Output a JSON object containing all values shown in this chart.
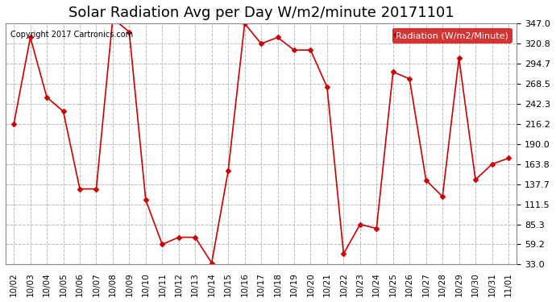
{
  "title": "Solar Radiation Avg per Day W/m2/minute 20171101",
  "copyright": "Copyright 2017 Cartronics.com",
  "legend_label": "Radiation (W/m2/Minute)",
  "xlabel": "",
  "ylabel": "",
  "x_labels": [
    "10/02",
    "10/03",
    "10/04",
    "10/05",
    "10/06",
    "10/07",
    "10/08",
    "10/09",
    "10/10",
    "10/11",
    "10/12",
    "10/13",
    "10/14",
    "10/15",
    "10/16",
    "10/17",
    "10/18",
    "10/19",
    "10/20",
    "10/21",
    "10/22",
    "10/23",
    "10/24",
    "10/25",
    "10/26",
    "10/27",
    "10/28",
    "10/29",
    "10/30",
    "10/31",
    "11/01"
  ],
  "y_values": [
    216.2,
    329.0,
    251.0,
    232.5,
    131.5,
    131.5,
    354.0,
    336.0,
    117.0,
    59.2,
    68.5,
    68.5,
    35.0,
    155.0,
    347.0,
    320.8,
    329.0,
    312.5,
    312.5,
    264.0,
    47.0,
    85.3,
    80.0,
    284.0,
    275.0,
    143.0,
    121.5,
    302.0,
    143.5,
    163.8,
    171.5
  ],
  "line_color": "#cc0000",
  "marker": "D",
  "marker_size": 3,
  "bg_color": "#ffffff",
  "grid_color": "#bbbbbb",
  "ylim": [
    33.0,
    347.0
  ],
  "yticks": [
    33.0,
    59.2,
    85.3,
    111.5,
    137.7,
    163.8,
    190.0,
    216.2,
    242.3,
    268.5,
    294.7,
    320.8,
    347.0
  ],
  "title_fontsize": 13,
  "legend_bg": "#cc0000",
  "legend_text_color": "#ffffff"
}
